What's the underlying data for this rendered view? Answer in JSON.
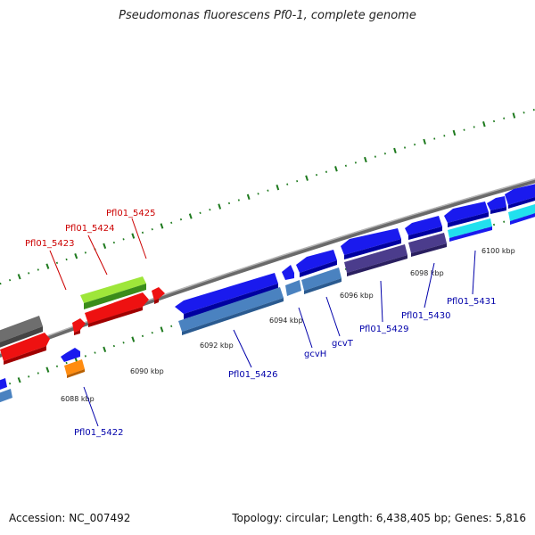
{
  "title": "Pseudomonas fluorescens Pf0-1, complete genome",
  "footer": {
    "accession": "Accession: NC_007492",
    "summary": "Topology: circular; Length: 6,438,405 bp; Genes: 5,816"
  },
  "colors": {
    "backbone": "#8c8c8c",
    "tick": "#1e7a1e",
    "forward_label": "#cc0000",
    "reverse_label": "#0000aa",
    "cds_forward": "#ee1111",
    "cds_reverse": "#1a1aee",
    "trna": "#8fd42c",
    "rrna": "#5ab0e0",
    "steel": "#4a82c0",
    "dark_purple": "#4b3c8c",
    "cyan": "#22e0ee",
    "orange": "#ff8c10",
    "gray": "#6e6e6e"
  },
  "tick_labels": [
    "6088 kbp",
    "6090 kbp",
    "6092 kbp",
    "6094 kbp",
    "6096 kbp",
    "6098 kbp",
    "6100 kbp"
  ],
  "forward_gene_labels": [
    "Pfl01_5423",
    "Pfl01_5424",
    "Pfl01_5425"
  ],
  "reverse_gene_labels": [
    "Pfl01_5422",
    "Pfl01_5426",
    "gcvH",
    "gcvT",
    "Pfl01_5429",
    "Pfl01_5430",
    "Pfl01_5431"
  ]
}
